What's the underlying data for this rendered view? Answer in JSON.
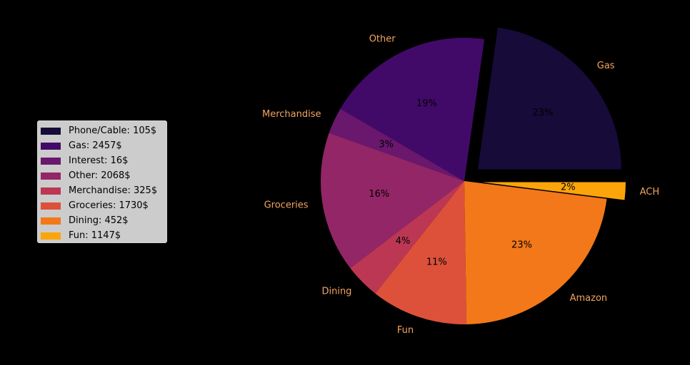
{
  "chart_data": {
    "type": "pie",
    "slices": [
      {
        "label": "Gas",
        "value": 23,
        "pct_label": "23%",
        "color": "#160b39",
        "exploded": true
      },
      {
        "label": "Other",
        "value": 19,
        "pct_label": "19%",
        "color": "#420a68",
        "exploded": false
      },
      {
        "label": "Merchandise",
        "value": 3,
        "pct_label": "3%",
        "color": "#6a176e",
        "exploded": false
      },
      {
        "label": "Groceries",
        "value": 16,
        "pct_label": "16%",
        "color": "#932667",
        "exploded": false
      },
      {
        "label": "Dining",
        "value": 4,
        "pct_label": "4%",
        "color": "#bc3754",
        "exploded": false
      },
      {
        "label": "Fun",
        "value": 11,
        "pct_label": "11%",
        "color": "#dd513a",
        "exploded": false
      },
      {
        "label": "Amazon",
        "value": 23,
        "pct_label": "23%",
        "color": "#f37819",
        "exploded": false
      },
      {
        "label": "ACH",
        "value": 2,
        "pct_label": "2%",
        "color": "#fca50a",
        "exploded": true
      }
    ],
    "label_color": "#f4a460",
    "pct_color": "#000000",
    "start_angle_deg": 0,
    "direction": "counterclockwise"
  },
  "legend": {
    "placement": "left",
    "items": [
      {
        "label": "Phone/Cable: 105$",
        "color": "#160b39"
      },
      {
        "label": "Gas: 2457$",
        "color": "#420a68"
      },
      {
        "label": "Interest: 16$",
        "color": "#6a176e"
      },
      {
        "label": "Other: 2068$",
        "color": "#932667"
      },
      {
        "label": "Merchandise: 325$",
        "color": "#bc3754"
      },
      {
        "label": "Groceries: 1730$",
        "color": "#dd513a"
      },
      {
        "label": "Dining: 452$",
        "color": "#f37819"
      },
      {
        "label": "Fun: 1147$",
        "color": "#fca50a"
      }
    ]
  }
}
